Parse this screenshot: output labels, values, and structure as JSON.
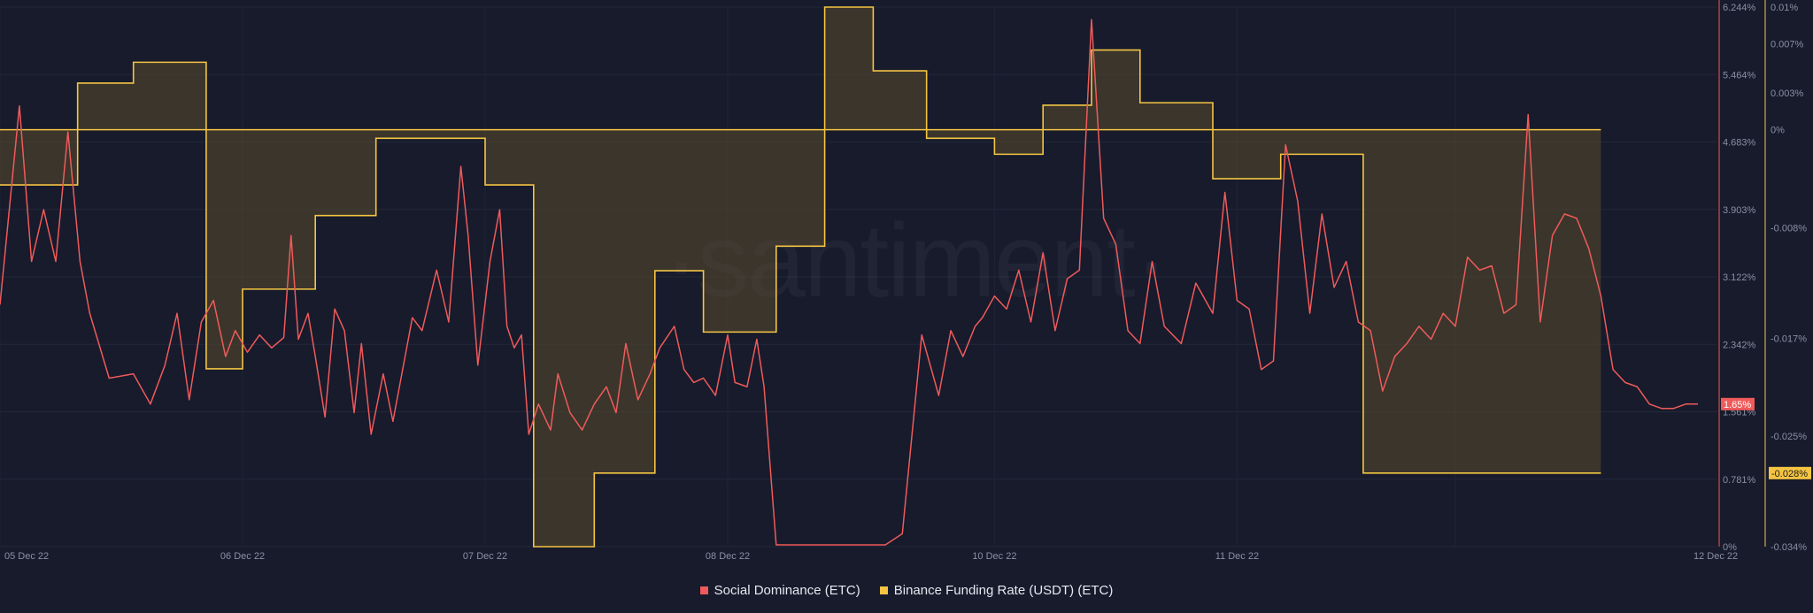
{
  "watermark": "·santiment·",
  "chart_data": {
    "type": "line",
    "x_range": [
      "05 Dec 22",
      "12 Dec 22"
    ],
    "x_ticks": [
      "05 Dec 22",
      "06 Dec 22",
      "07 Dec 22",
      "08 Dec 22",
      "10 Dec 22",
      "11 Dec 22",
      "12 Dec 22"
    ],
    "grid": true,
    "legend_position": "bottom-center",
    "axes": {
      "right_primary": {
        "series": "Social Dominance (ETC)",
        "unit": "%",
        "ylim": [
          0,
          6.244
        ],
        "ticks": [
          "6.244%",
          "5.464%",
          "4.683%",
          "3.903%",
          "3.122%",
          "2.342%",
          "1.561%",
          "0.781%",
          "0%"
        ],
        "color": "#f05a5a"
      },
      "right_secondary": {
        "series": "Binance Funding Rate (USDT) (ETC)",
        "unit": "%",
        "ylim": [
          -0.034,
          0.01
        ],
        "ticks": [
          "0.01%",
          "0.007%",
          "0.003%",
          "0%",
          "-0.008%",
          "-0.017%",
          "-0.025%",
          "-0.034%"
        ],
        "color": "#f5c542"
      }
    },
    "series": [
      {
        "name": "Social Dominance (ETC)",
        "color": "#f05a5a",
        "current_value_label": "1.65%",
        "x": [
          0,
          0.08,
          0.13,
          0.18,
          0.23,
          0.28,
          0.33,
          0.37,
          0.45,
          0.55,
          0.62,
          0.68,
          0.73,
          0.78,
          0.83,
          0.88,
          0.93,
          0.97,
          1.02,
          1.07,
          1.12,
          1.17,
          1.2,
          1.23,
          1.27,
          1.3,
          1.34,
          1.38,
          1.42,
          1.46,
          1.49,
          1.53,
          1.58,
          1.62,
          1.65,
          1.7,
          1.74,
          1.8,
          1.85,
          1.9,
          1.93,
          1.97,
          2.02,
          2.06,
          2.09,
          2.12,
          2.15,
          2.18,
          2.22,
          2.27,
          2.3,
          2.35,
          2.4,
          2.45,
          2.5,
          2.54,
          2.58,
          2.63,
          2.68,
          2.72,
          2.78,
          2.82,
          2.86,
          2.9,
          2.95,
          3.0,
          3.03,
          3.08,
          3.12,
          3.15,
          3.2,
          3.25,
          3.3,
          3.35,
          3.4,
          3.45,
          3.5,
          3.55,
          3.6,
          3.65,
          3.72,
          3.8,
          3.87,
          3.92,
          3.97,
          4.02,
          4.05,
          4.1,
          4.15,
          4.2,
          4.25,
          4.3,
          4.35,
          4.4,
          4.45,
          4.5,
          4.55,
          4.6,
          4.65,
          4.7,
          4.75,
          4.8,
          4.87,
          4.93,
          5.0,
          5.05,
          5.1,
          5.15,
          5.2,
          5.25,
          5.3,
          5.35,
          5.4,
          5.45,
          5.5,
          5.55,
          5.6,
          5.65,
          5.7,
          5.75,
          5.8,
          5.85,
          5.9,
          5.95,
          6.0,
          6.05,
          6.1,
          6.15,
          6.2,
          6.25,
          6.3,
          6.35,
          6.4,
          6.45,
          6.5,
          6.55,
          6.6,
          6.65,
          6.7,
          6.75,
          6.8,
          6.85,
          6.9,
          6.95,
          7.0
        ],
        "values": [
          2.8,
          5.1,
          3.3,
          3.9,
          3.3,
          4.8,
          3.3,
          2.7,
          1.95,
          2.0,
          1.65,
          2.1,
          2.7,
          1.7,
          2.6,
          2.85,
          2.2,
          2.5,
          2.25,
          2.45,
          2.3,
          2.42,
          3.6,
          2.4,
          2.7,
          2.2,
          1.5,
          2.75,
          2.5,
          1.55,
          2.35,
          1.3,
          2.0,
          1.45,
          1.9,
          2.65,
          2.5,
          3.2,
          2.6,
          4.4,
          3.6,
          2.1,
          3.3,
          3.9,
          2.55,
          2.3,
          2.45,
          1.3,
          1.65,
          1.35,
          2.0,
          1.55,
          1.35,
          1.65,
          1.85,
          1.55,
          2.35,
          1.7,
          2.0,
          2.3,
          2.55,
          2.05,
          1.9,
          1.95,
          1.75,
          2.45,
          1.9,
          1.85,
          2.4,
          1.85,
          0.02,
          0.02,
          0.02,
          0.02,
          0.02,
          0.02,
          0.02,
          0.02,
          0.02,
          0.02,
          0.15,
          2.45,
          1.75,
          2.5,
          2.2,
          2.55,
          2.65,
          2.9,
          2.75,
          3.2,
          2.6,
          3.4,
          2.5,
          3.1,
          3.2,
          6.1,
          3.8,
          3.5,
          2.5,
          2.35,
          3.3,
          2.55,
          2.35,
          3.05,
          2.7,
          4.1,
          2.85,
          2.75,
          2.05,
          2.15,
          4.65,
          4.0,
          2.7,
          3.85,
          3.0,
          3.3,
          2.6,
          2.5,
          1.8,
          2.2,
          2.35,
          2.55,
          2.4,
          2.7,
          2.55,
          3.35,
          3.2,
          3.25,
          2.7,
          2.8,
          5.0,
          2.6,
          3.6,
          3.85,
          3.8,
          3.45,
          2.9,
          2.05,
          1.9,
          1.85,
          1.65,
          1.6,
          1.6,
          1.65,
          1.65
        ]
      },
      {
        "name": "Binance Funding Rate (USDT) (ETC)",
        "color": "#f5c542",
        "current_value_label": "-0.028%",
        "step": true,
        "x": [
          0,
          0.32,
          0.32,
          0.55,
          0.55,
          0.85,
          0.85,
          1.0,
          1.0,
          1.3,
          1.3,
          1.55,
          1.55,
          2.0,
          2.0,
          2.2,
          2.2,
          2.45,
          2.45,
          2.7,
          2.7,
          2.9,
          2.9,
          3.2,
          3.2,
          3.4,
          3.4,
          3.6,
          3.6,
          3.82,
          3.82,
          4.1,
          4.1,
          4.3,
          4.3,
          4.5,
          4.5,
          4.7,
          4.7,
          5.0,
          5.0,
          5.28,
          5.28,
          5.62,
          5.62,
          6.0,
          6.0,
          6.2,
          6.2,
          6.4,
          6.4,
          6.52,
          6.52,
          6.6
        ],
        "values": [
          -0.0045,
          -0.0045,
          0.0038,
          0.0038,
          0.0055,
          0.0055,
          -0.0195,
          -0.0195,
          -0.013,
          -0.013,
          -0.007,
          -0.007,
          -0.0007,
          -0.0007,
          -0.0045,
          -0.0045,
          -0.034,
          -0.034,
          -0.028,
          -0.028,
          -0.0115,
          -0.0115,
          -0.0165,
          -0.0165,
          -0.0095,
          -0.0095,
          0.01,
          0.01,
          0.0048,
          0.0048,
          -0.0007,
          -0.0007,
          -0.002,
          -0.002,
          0.002,
          0.002,
          0.0065,
          0.0065,
          0.0022,
          0.0022,
          -0.004,
          -0.004,
          -0.002,
          -0.002,
          -0.028,
          -0.028,
          -0.028,
          -0.028,
          -0.028,
          -0.028,
          -0.028,
          -0.028,
          -0.028,
          -0.028
        ],
        "baseline": 0
      }
    ]
  },
  "legend": {
    "items": [
      {
        "label": "Social Dominance (ETC)",
        "color": "#f05a5a"
      },
      {
        "label": "Binance Funding Rate (USDT) (ETC)",
        "color": "#f5c542"
      }
    ]
  }
}
